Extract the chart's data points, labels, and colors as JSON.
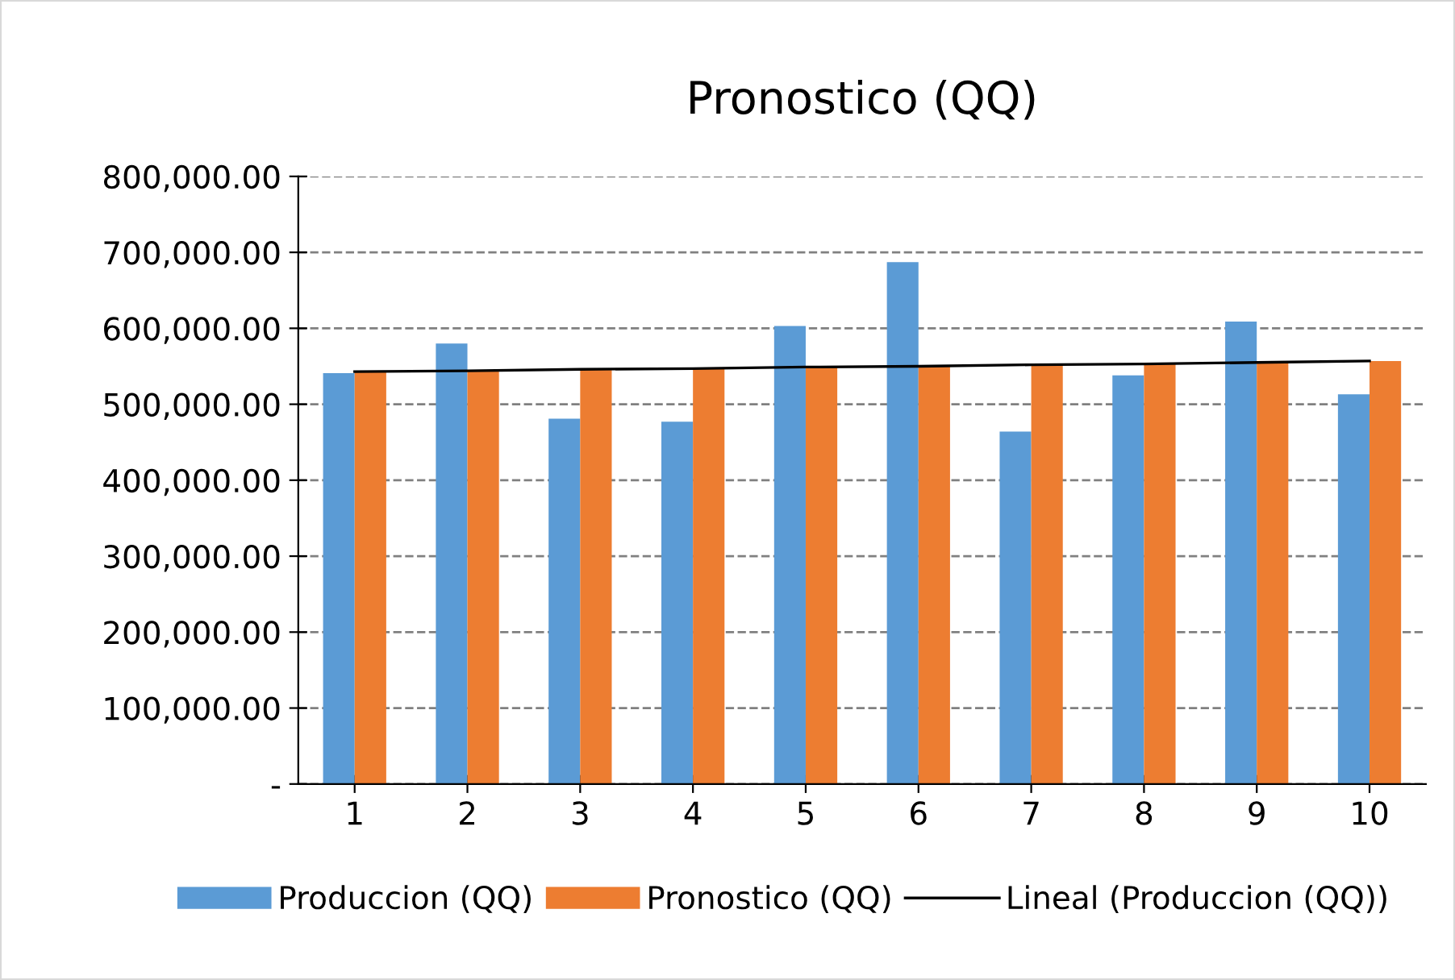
{
  "chart_data": {
    "type": "bar",
    "title": "Pronostico (QQ)",
    "categories": [
      "1",
      "2",
      "3",
      "4",
      "5",
      "6",
      "7",
      "8",
      "9",
      "10"
    ],
    "series": [
      {
        "name": "Produccion (QQ)",
        "color": "#5b9bd5",
        "values": [
          541000,
          580000,
          481000,
          477000,
          603000,
          687000,
          464000,
          538000,
          609000,
          513000
        ]
      },
      {
        "name": "Pronostico (QQ)",
        "color": "#ed7d31",
        "values": [
          543000,
          544000,
          546000,
          547000,
          549000,
          550000,
          552000,
          553000,
          555000,
          557000
        ]
      },
      {
        "name": "Lineal (Produccion (QQ))",
        "type": "line",
        "color": "#000000",
        "values": [
          543000,
          544000,
          546000,
          547000,
          549000,
          550000,
          552000,
          553000,
          555000,
          557000
        ]
      }
    ],
    "ylim": [
      0,
      800000
    ],
    "yticks": [
      {
        "value": 0,
        "label": "-"
      },
      {
        "value": 100000,
        "label": "100,000.00"
      },
      {
        "value": 200000,
        "label": "200,000.00"
      },
      {
        "value": 300000,
        "label": "300,000.00"
      },
      {
        "value": 400000,
        "label": "400,000.00"
      },
      {
        "value": 500000,
        "label": "500,000.00"
      },
      {
        "value": 600000,
        "label": "600,000.00"
      },
      {
        "value": 700000,
        "label": "700,000.00"
      },
      {
        "value": 800000,
        "label": "800,000.00"
      }
    ],
    "grid": "y",
    "legend": "bottom",
    "marker": "none",
    "line_style": "solid"
  }
}
